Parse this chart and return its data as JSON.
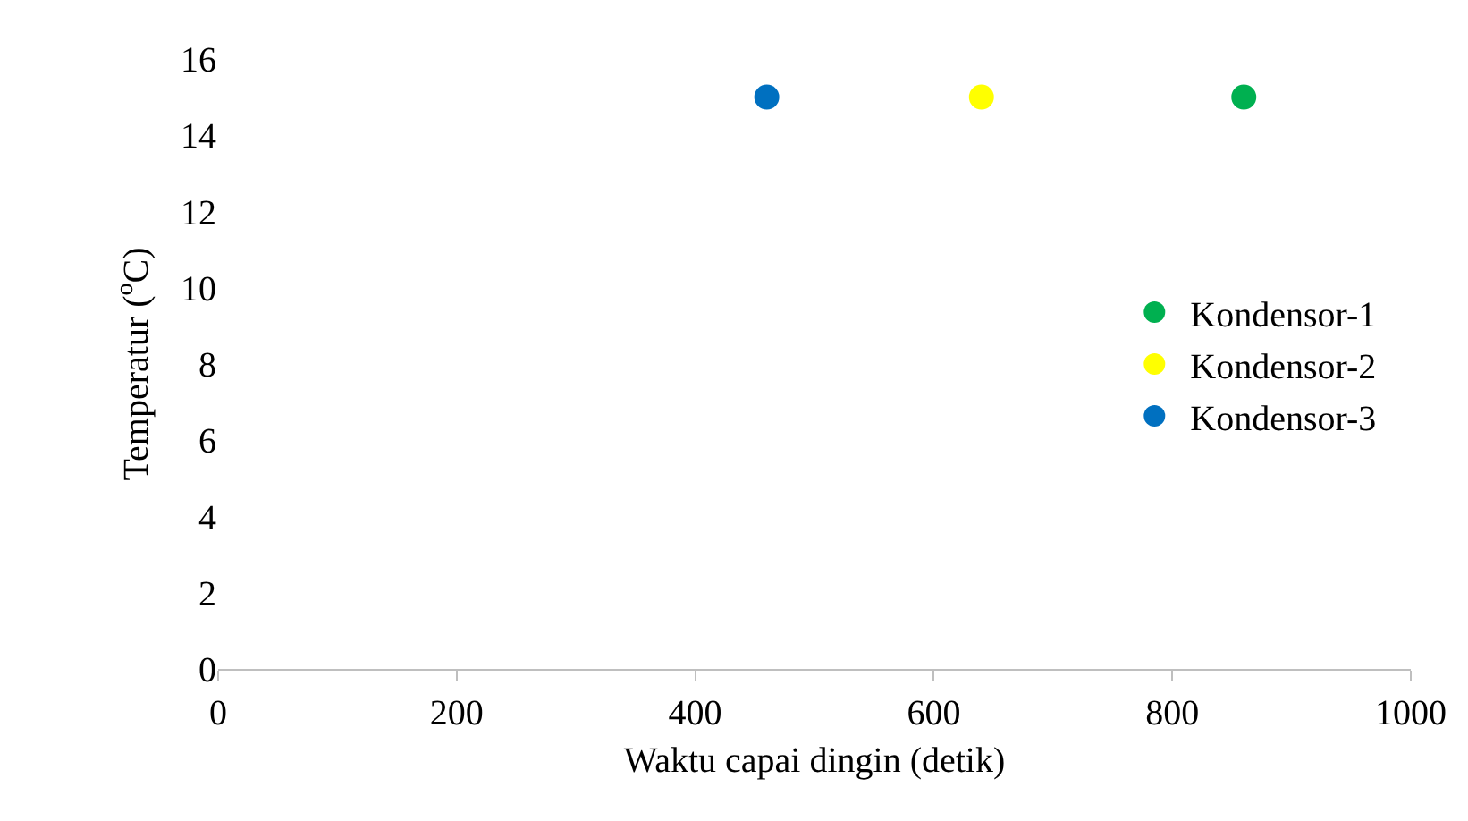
{
  "chart_data": {
    "type": "scatter",
    "xlabel": "Waktu capai dingin (detik)",
    "ylabel": "Temperatur ($^{o}$C)",
    "xlim": [
      0,
      1000
    ],
    "xticks": [
      0,
      200,
      400,
      600,
      800,
      1000
    ],
    "ylim": [
      0,
      16
    ],
    "yticks": [
      0,
      2,
      4,
      6,
      8,
      10,
      12,
      14,
      16
    ],
    "grid": false,
    "legend": "right",
    "marker": "circle",
    "series": [
      {
        "name": "Kondensor-1",
        "color": "#00b050",
        "x": [
          860
        ],
        "values": [
          15
        ]
      },
      {
        "name": "Kondensor-2",
        "color": "#ffff00",
        "x": [
          640
        ],
        "values": [
          15
        ]
      },
      {
        "name": "Kondensor-3",
        "color": "#0070c0",
        "x": [
          460
        ],
        "values": [
          15
        ]
      }
    ]
  }
}
